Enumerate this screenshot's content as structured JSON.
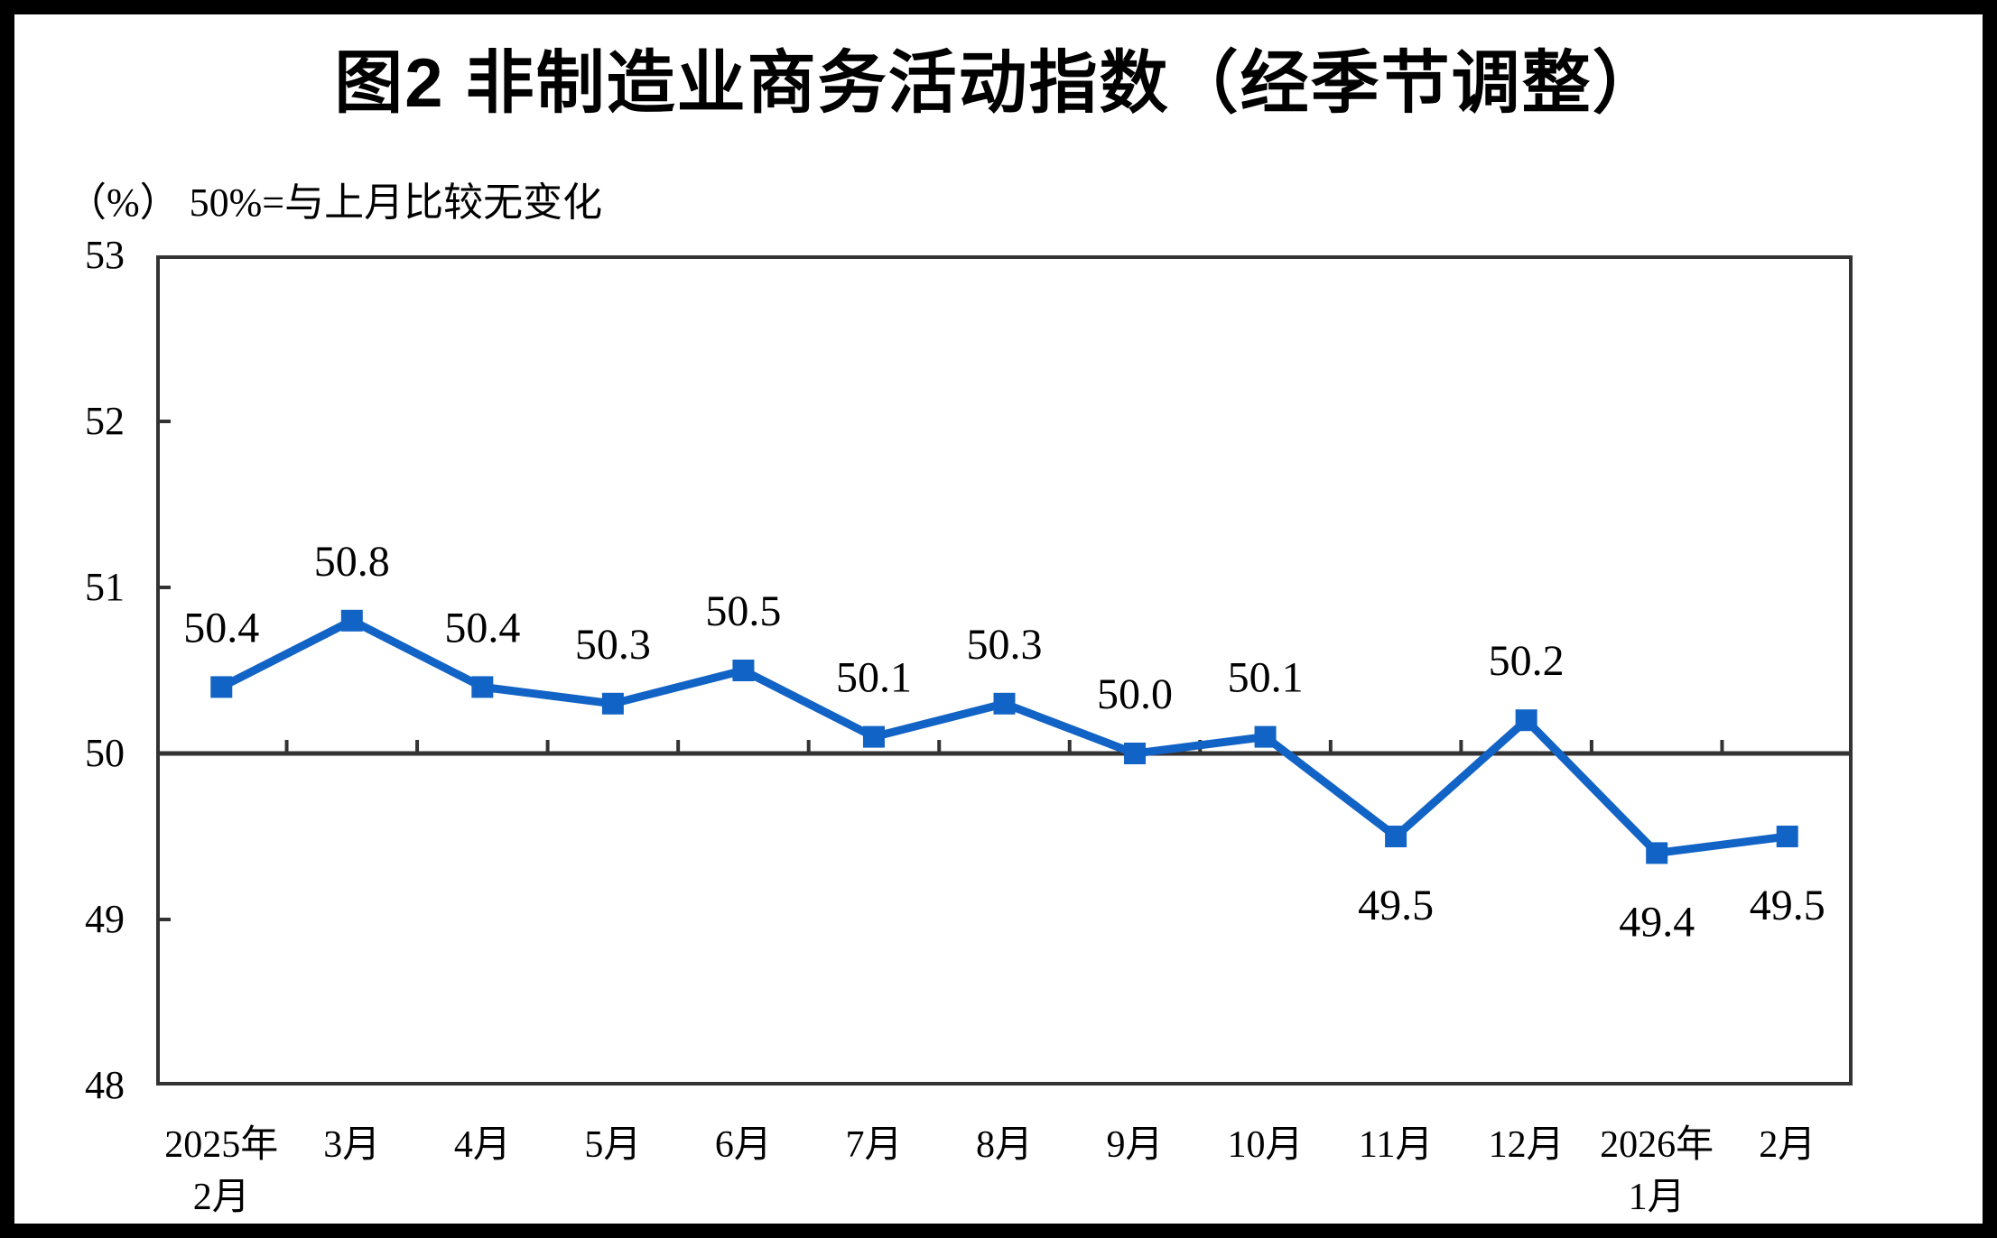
{
  "chart_data": {
    "type": "line",
    "title": "图2  非制造业商务活动指数（经季节调整）",
    "unit_note": "（%） 50%=与上月比较无变化",
    "categories": [
      [
        "2025年",
        "2月"
      ],
      [
        "3月"
      ],
      [
        "4月"
      ],
      [
        "5月"
      ],
      [
        "6月"
      ],
      [
        "7月"
      ],
      [
        "8月"
      ],
      [
        "9月"
      ],
      [
        "10月"
      ],
      [
        "11月"
      ],
      [
        "12月"
      ],
      [
        "2026年",
        "1月"
      ],
      [
        "2月"
      ]
    ],
    "values": [
      50.4,
      50.8,
      50.4,
      50.3,
      50.5,
      50.1,
      50.3,
      50.0,
      50.1,
      49.5,
      50.2,
      49.4,
      49.5
    ],
    "point_labels": [
      "50.4",
      "50.8",
      "50.4",
      "50.3",
      "50.5",
      "50.1",
      "50.3",
      "50.0",
      "50.1",
      "49.5",
      "50.2",
      "49.4",
      "49.5"
    ],
    "label_positions": [
      "above",
      "above",
      "above",
      "above",
      "above",
      "above",
      "above",
      "above",
      "above",
      "below",
      "above",
      "below",
      "below"
    ],
    "ylim": [
      48,
      53
    ],
    "yticks": [
      53,
      52,
      51,
      50,
      49,
      48
    ],
    "reference_line": 50,
    "grid": "off",
    "legend": "none",
    "colors": {
      "line": "#1263C6",
      "axis": "#333333",
      "text": "#000000"
    }
  }
}
